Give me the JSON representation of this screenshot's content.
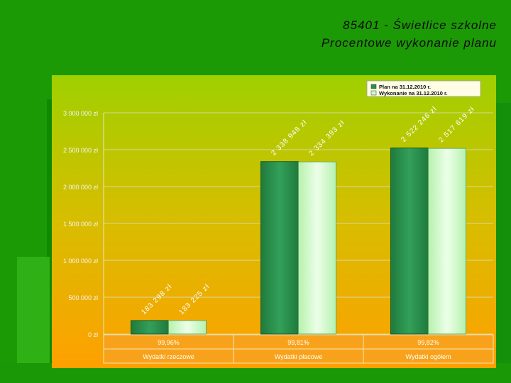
{
  "slide": {
    "title_line1": "85401 - Świetlice szkolne",
    "title_line2": "Procentowe wykonanie planu"
  },
  "colors": {
    "background": "#1c9a06",
    "plan_series": "#2a8f4c",
    "execution_series": "#cffac8",
    "plot_gradient_top": "#9fd000",
    "plot_gradient_bottom": "#ffa000",
    "table_bg": "#f8a21c"
  },
  "chart_data": {
    "type": "bar",
    "categories": [
      "Wydatki rzeczowe",
      "Wydatki płacowe",
      "Wydatki ogółem"
    ],
    "series": [
      {
        "name": "Plan na 31.12.2010 r.",
        "values": [
          183298,
          2338948,
          2522246
        ],
        "labels": [
          "183 298 zł",
          "2 338 948 zł",
          "2 522 246 zł"
        ]
      },
      {
        "name": "Wykonanie na 31.12.2010 r.",
        "values": [
          183225,
          2334393,
          2517619
        ],
        "labels": [
          "183 225 zł",
          "2 334 393 zł",
          "2 517 619 zł"
        ]
      }
    ],
    "percentages": [
      "99,96%",
      "99,81%",
      "99,82%"
    ],
    "y_ticks": [
      0,
      500000,
      1000000,
      1500000,
      2000000,
      2500000,
      3000000
    ],
    "y_tick_labels": [
      "0 zł",
      "500 000 zł",
      "1 000 000 zł",
      "1 500 000 zł",
      "2 000 000 zł",
      "2 500 000 zł",
      "3 000 000 zł"
    ],
    "ylim": [
      0,
      3000000
    ],
    "grid": true,
    "legend_position": "top-right"
  }
}
